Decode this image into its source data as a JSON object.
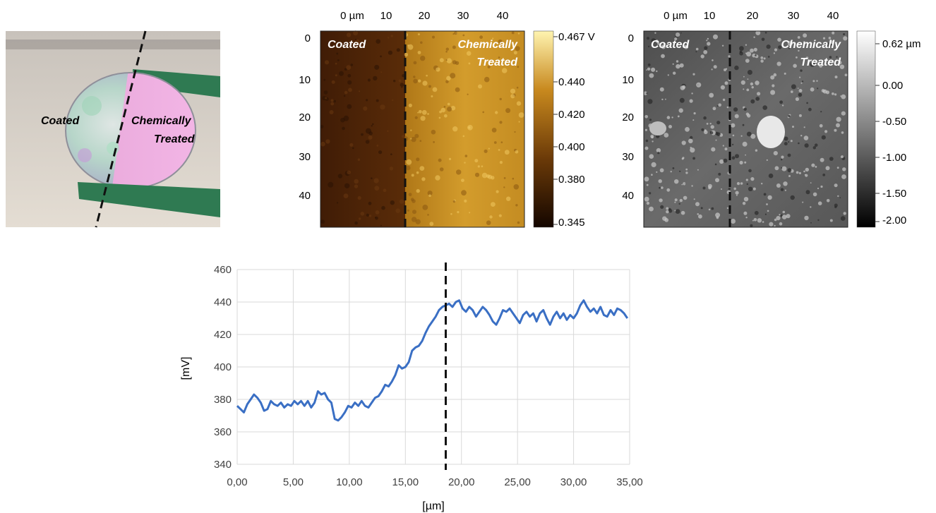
{
  "photo": {
    "left_label": "Coated",
    "right_label_line1": "Chemically",
    "right_label_line2": "Treated"
  },
  "kpfm_map": {
    "x_ticks": [
      "0 µm",
      "10",
      "20",
      "30",
      "40"
    ],
    "y_ticks": [
      "0",
      "10",
      "20",
      "30",
      "40"
    ],
    "left_label": "Coated",
    "right_label_line1": "Chemically",
    "right_label_line2": "Treated",
    "colorbar_ticks": [
      "0.467 V",
      "0.440",
      "0.420",
      "0.400",
      "0.380",
      "0.345"
    ],
    "colors": {
      "dark": "#3a1a05",
      "mid": "#9a5f10",
      "bright": "#d9a330",
      "peak": "#fff1a0"
    }
  },
  "topo_map": {
    "x_ticks": [
      "0 µm",
      "10",
      "20",
      "30",
      "40"
    ],
    "y_ticks": [
      "0",
      "10",
      "20",
      "30",
      "40"
    ],
    "left_label": "Coated",
    "right_label_line1": "Chemically",
    "right_label_line2": "Treated",
    "colorbar_ticks": [
      "0.62 µm",
      "0.00",
      "-0.50",
      "-1.00",
      "-1.50",
      "-2.00"
    ]
  },
  "chart_data": {
    "type": "line",
    "xlabel": "[µm]",
    "ylabel": "[mV]",
    "xlim": [
      0,
      35
    ],
    "ylim": [
      340,
      460
    ],
    "x_ticks": [
      "0,00",
      "5,00",
      "10,00",
      "15,00",
      "20,00",
      "25,00",
      "30,00",
      "35,00"
    ],
    "y_ticks": [
      "340",
      "360",
      "380",
      "400",
      "420",
      "440",
      "460"
    ],
    "grid": true,
    "boundary_x": 18.6,
    "series": [
      {
        "color": "#3a6fc4",
        "points": [
          [
            0.0,
            376
          ],
          [
            0.3,
            374
          ],
          [
            0.6,
            372
          ],
          [
            0.9,
            377
          ],
          [
            1.2,
            380
          ],
          [
            1.5,
            383
          ],
          [
            1.8,
            381
          ],
          [
            2.1,
            378
          ],
          [
            2.4,
            373
          ],
          [
            2.7,
            374
          ],
          [
            3.0,
            379
          ],
          [
            3.3,
            377
          ],
          [
            3.6,
            376
          ],
          [
            3.9,
            378
          ],
          [
            4.2,
            375
          ],
          [
            4.5,
            377
          ],
          [
            4.8,
            376
          ],
          [
            5.1,
            379
          ],
          [
            5.4,
            377
          ],
          [
            5.7,
            379
          ],
          [
            6.0,
            376
          ],
          [
            6.3,
            379
          ],
          [
            6.6,
            375
          ],
          [
            6.9,
            378
          ],
          [
            7.2,
            385
          ],
          [
            7.5,
            383
          ],
          [
            7.8,
            384
          ],
          [
            8.1,
            380
          ],
          [
            8.4,
            378
          ],
          [
            8.7,
            368
          ],
          [
            9.0,
            367
          ],
          [
            9.3,
            369
          ],
          [
            9.6,
            372
          ],
          [
            9.9,
            376
          ],
          [
            10.2,
            375
          ],
          [
            10.5,
            378
          ],
          [
            10.8,
            376
          ],
          [
            11.1,
            379
          ],
          [
            11.4,
            376
          ],
          [
            11.7,
            375
          ],
          [
            12.0,
            378
          ],
          [
            12.3,
            381
          ],
          [
            12.6,
            382
          ],
          [
            12.9,
            385
          ],
          [
            13.2,
            389
          ],
          [
            13.5,
            388
          ],
          [
            13.8,
            391
          ],
          [
            14.1,
            395
          ],
          [
            14.4,
            401
          ],
          [
            14.7,
            399
          ],
          [
            15.0,
            400
          ],
          [
            15.3,
            403
          ],
          [
            15.6,
            410
          ],
          [
            15.9,
            412
          ],
          [
            16.2,
            413
          ],
          [
            16.5,
            416
          ],
          [
            16.8,
            421
          ],
          [
            17.1,
            425
          ],
          [
            17.4,
            428
          ],
          [
            17.7,
            431
          ],
          [
            18.0,
            435
          ],
          [
            18.3,
            437
          ],
          [
            18.6,
            438
          ],
          [
            18.9,
            439
          ],
          [
            19.2,
            437
          ],
          [
            19.5,
            440
          ],
          [
            19.8,
            441
          ],
          [
            20.1,
            436
          ],
          [
            20.4,
            434
          ],
          [
            20.7,
            437
          ],
          [
            21.0,
            435
          ],
          [
            21.3,
            431
          ],
          [
            21.6,
            434
          ],
          [
            21.9,
            437
          ],
          [
            22.2,
            435
          ],
          [
            22.5,
            432
          ],
          [
            22.8,
            428
          ],
          [
            23.1,
            426
          ],
          [
            23.4,
            430
          ],
          [
            23.7,
            435
          ],
          [
            24.0,
            434
          ],
          [
            24.3,
            436
          ],
          [
            24.6,
            433
          ],
          [
            24.9,
            430
          ],
          [
            25.2,
            427
          ],
          [
            25.5,
            432
          ],
          [
            25.8,
            434
          ],
          [
            26.1,
            431
          ],
          [
            26.4,
            433
          ],
          [
            26.7,
            428
          ],
          [
            27.0,
            433
          ],
          [
            27.3,
            435
          ],
          [
            27.6,
            430
          ],
          [
            27.9,
            426
          ],
          [
            28.2,
            431
          ],
          [
            28.5,
            434
          ],
          [
            28.8,
            430
          ],
          [
            29.1,
            433
          ],
          [
            29.4,
            429
          ],
          [
            29.7,
            432
          ],
          [
            30.0,
            430
          ],
          [
            30.3,
            433
          ],
          [
            30.6,
            438
          ],
          [
            30.9,
            441
          ],
          [
            31.2,
            437
          ],
          [
            31.5,
            434
          ],
          [
            31.8,
            436
          ],
          [
            32.1,
            433
          ],
          [
            32.4,
            437
          ],
          [
            32.7,
            432
          ],
          [
            33.0,
            431
          ],
          [
            33.3,
            435
          ],
          [
            33.6,
            432
          ],
          [
            33.9,
            436
          ],
          [
            34.2,
            435
          ],
          [
            34.5,
            433
          ],
          [
            34.8,
            430
          ]
        ]
      }
    ]
  }
}
